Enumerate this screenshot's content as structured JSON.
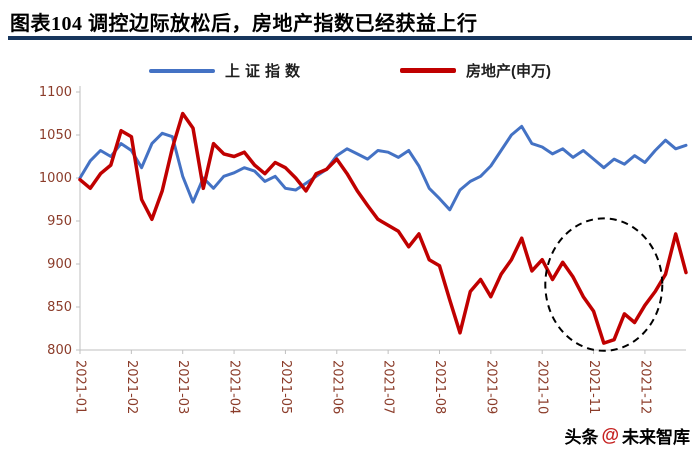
{
  "title": "图表104  调控边际放松后，房地产指数已经获益上行",
  "watermark": {
    "prefix": "头条",
    "separator": "@",
    "brand": "未来智库"
  },
  "chart_data": {
    "type": "line",
    "title": "图表104  调控边际放松后，房地产指数已经获益上行",
    "xlabel": "",
    "ylabel": "",
    "ylim": [
      800,
      1100
    ],
    "y_ticks": [
      800,
      850,
      900,
      950,
      1000,
      1050,
      1100
    ],
    "x_tick_labels": [
      "2021-01",
      "2021-02",
      "2021-03",
      "2021-04",
      "2021-05",
      "2021-06",
      "2021-07",
      "2021-08",
      "2021-09",
      "2021-10",
      "2021-11",
      "2021-12"
    ],
    "points_per_month": 5,
    "grid": false,
    "legend_position": "top",
    "axis_label_color": "#8b3c2a",
    "axis_line_color": "#bfbfbf",
    "series": [
      {
        "name": "上证指数",
        "color": "#4472C4",
        "width": 3,
        "values": [
          1000,
          1020,
          1032,
          1025,
          1040,
          1032,
          1012,
          1040,
          1052,
          1048,
          1002,
          972,
          1000,
          988,
          1002,
          1006,
          1012,
          1008,
          996,
          1002,
          988,
          986,
          994,
          1002,
          1010,
          1026,
          1034,
          1028,
          1022,
          1032,
          1030,
          1024,
          1032,
          1014,
          988,
          976,
          963,
          986,
          996,
          1002,
          1014,
          1032,
          1050,
          1060,
          1040,
          1036,
          1028,
          1034,
          1024,
          1032,
          1022,
          1012,
          1022,
          1016,
          1026,
          1018,
          1032,
          1044,
          1034,
          1038
        ]
      },
      {
        "name": "房地产(申万)",
        "color": "#C00000",
        "width": 3.5,
        "values": [
          998,
          988,
          1005,
          1015,
          1055,
          1048,
          975,
          952,
          985,
          1035,
          1075,
          1058,
          988,
          1040,
          1028,
          1025,
          1030,
          1015,
          1005,
          1018,
          1012,
          1000,
          985,
          1005,
          1010,
          1022,
          1005,
          985,
          968,
          952,
          945,
          938,
          920,
          935,
          905,
          898,
          858,
          820,
          868,
          882,
          862,
          888,
          905,
          930,
          892,
          905,
          882,
          902,
          885,
          862,
          845,
          808,
          812,
          842,
          832,
          852,
          868,
          888,
          935,
          890
        ]
      }
    ],
    "annotation_ellipse": {
      "center_index": 51,
      "center_value": 876,
      "radius_index": 5.7,
      "radius_value": 77,
      "style": "dashed"
    }
  }
}
